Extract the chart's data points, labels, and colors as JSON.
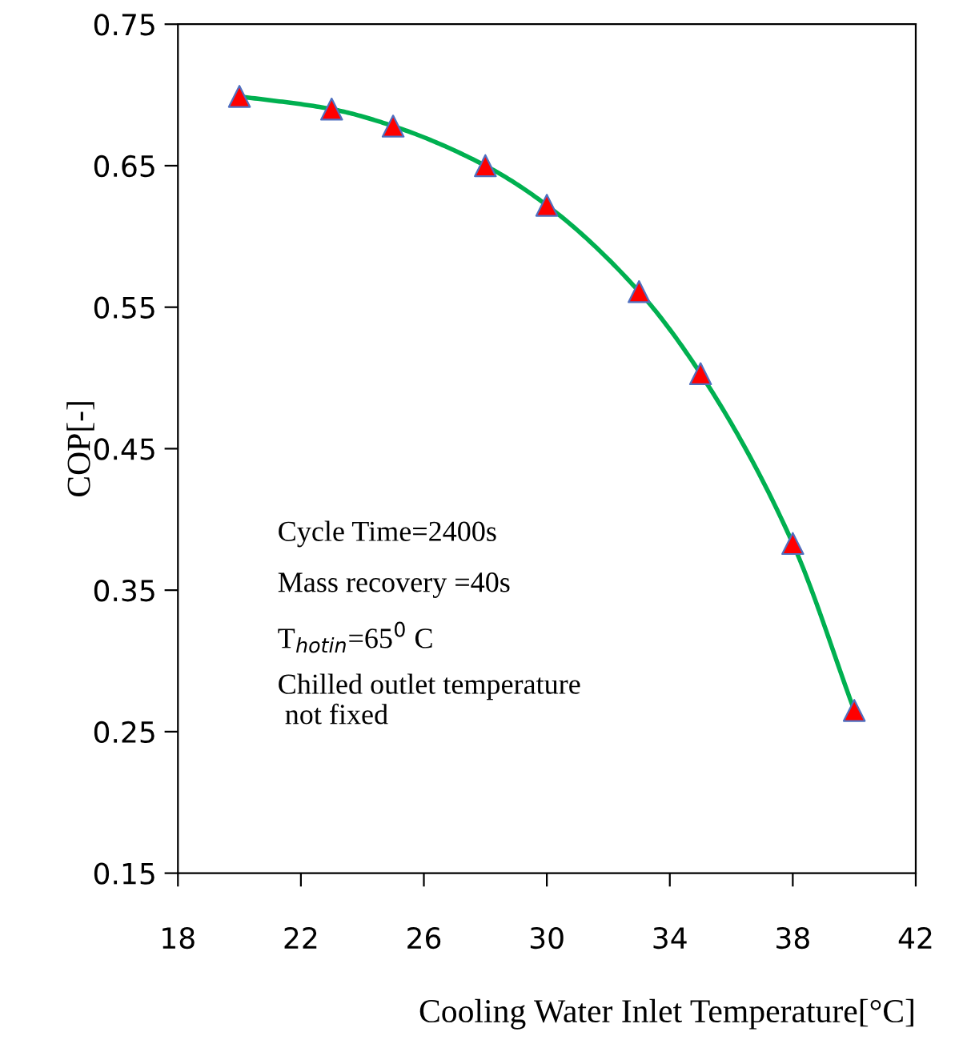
{
  "chart_data": {
    "type": "line",
    "xlabel": "Cooling Water Inlet Temperature[°C]",
    "ylabel": "COP[-]",
    "x": [
      20,
      23,
      25,
      28,
      30,
      33,
      35,
      38,
      40
    ],
    "series": [
      {
        "color": "#00b050",
        "colors": [
          "#ff0000",
          "#ff0000",
          "#ff0000",
          "#ff0000",
          "#ff0000",
          "#ff0000",
          "#ff0000",
          "#ff0000",
          "#ff0000"
        ],
        "values": [
          0.699,
          0.69,
          0.678,
          0.65,
          0.622,
          0.561,
          0.503,
          0.383,
          0.265
        ]
      }
    ],
    "xlim": [
      18,
      42
    ],
    "xticks": [
      18,
      22,
      26,
      30,
      34,
      38,
      42
    ],
    "ylim": [
      0.15,
      0.75
    ],
    "yticks": [
      0.15,
      0.25,
      0.35,
      0.45,
      0.55,
      0.65,
      0.75
    ],
    "marker": "triangle",
    "grid": false,
    "legend": false,
    "annotations": [
      "Cycle Time=2400s",
      "Mass recovery =40s",
      "T$_{hotin}$=65$^{0}$ C",
      "Chilled outlet temperature\n not fixed"
    ]
  }
}
